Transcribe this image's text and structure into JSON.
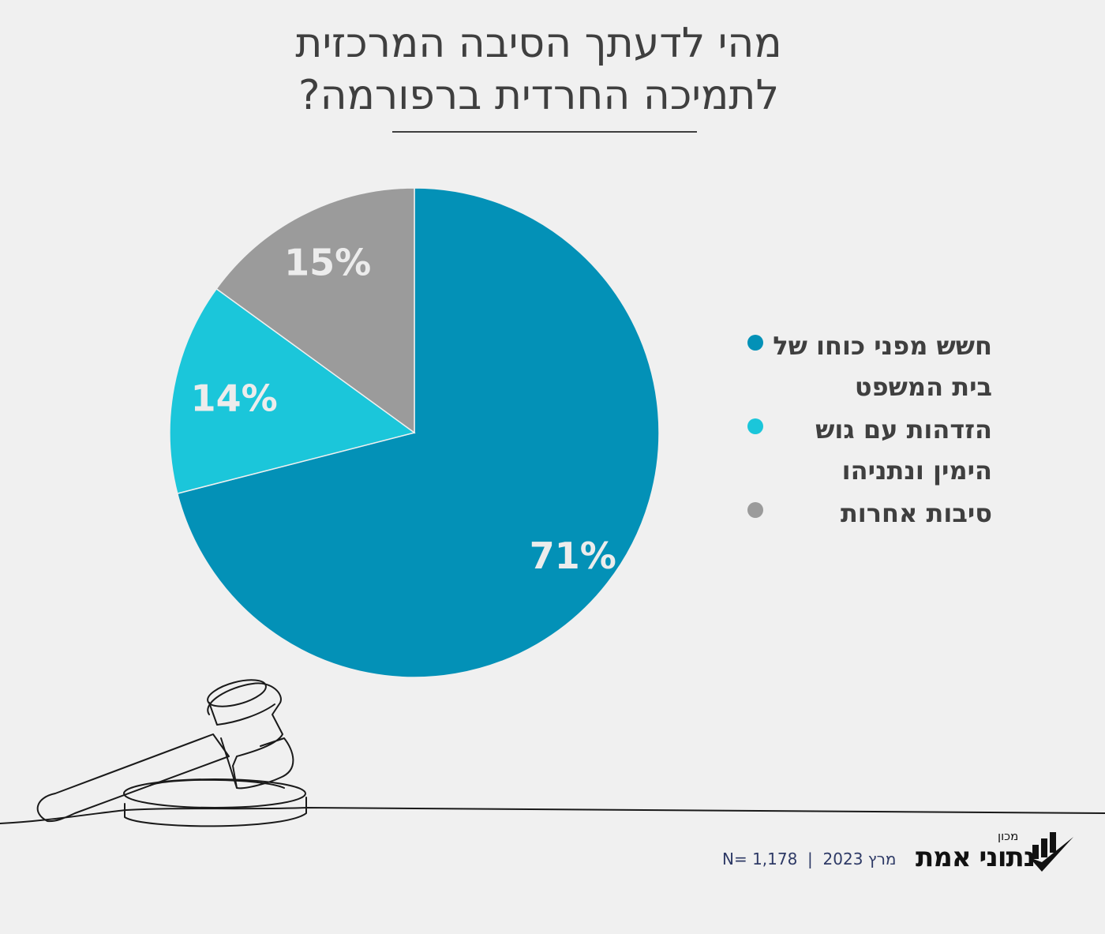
{
  "title": {
    "line1": "מהי לדעתך הסיבה המרכזית",
    "line2": "לתמיכה החרדית ברפורמה?"
  },
  "chart_data": {
    "type": "pie",
    "start": "top",
    "direction": "clockwise",
    "slices": [
      {
        "label": "חשש מפני כוחו של בית המשפט",
        "value": 71,
        "data_label": "71%",
        "color": "#0391b7"
      },
      {
        "label": "הזדהות עם גוש הימין ונתניהו",
        "value": 14,
        "data_label": "14%",
        "color": "#1bc6da"
      },
      {
        "label": "סיבות אחרות",
        "value": 15,
        "data_label": "15%",
        "color": "#9b9b9b"
      }
    ],
    "legend_position": "right"
  },
  "footer": {
    "text": "מרץ 2023 | N= 1,178",
    "date": "מרץ 2023",
    "sample": "N= 1,178"
  },
  "logo": {
    "small": "מכון",
    "main": "נתוני אמת"
  },
  "colors": {
    "background": "#f0f0f0",
    "text": "#3f3f3f"
  }
}
